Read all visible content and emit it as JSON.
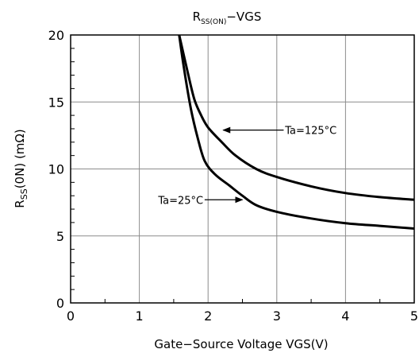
{
  "chart_data": {
    "type": "line",
    "title_main": "R",
    "title_sub": "SS(ON)",
    "title_tail": "−VGS",
    "xlabel": "Gate−Source Voltage VGS(V)",
    "ylabel_main": "R",
    "ylabel_sub": "SS",
    "ylabel_tail": "(0N) (mΩ)",
    "xlim": [
      0,
      5
    ],
    "ylim": [
      0,
      20
    ],
    "xticks": [
      0,
      1,
      2,
      3,
      4,
      5
    ],
    "yticks": [
      0,
      5,
      10,
      15,
      20
    ],
    "grid": true,
    "series": [
      {
        "name": "Ta=125°C",
        "x": [
          1.58,
          1.7,
          1.8,
          1.9,
          2.0,
          2.2,
          2.4,
          2.7,
          3.0,
          3.5,
          4.0,
          4.5,
          5.0
        ],
        "y": [
          20,
          17.3,
          15.2,
          14.0,
          13.1,
          12.0,
          11.0,
          10.0,
          9.4,
          8.7,
          8.2,
          7.9,
          7.7
        ]
      },
      {
        "name": "Ta=25°C",
        "x": [
          1.58,
          1.65,
          1.75,
          1.85,
          1.95,
          2.1,
          2.3,
          2.5,
          2.7,
          3.0,
          3.5,
          4.0,
          4.5,
          5.0
        ],
        "y": [
          20,
          17.5,
          14.5,
          12.3,
          10.6,
          9.6,
          8.8,
          8.0,
          7.3,
          6.8,
          6.3,
          5.95,
          5.75,
          5.55
        ]
      }
    ],
    "annotations": [
      {
        "text": "Ta=125°C",
        "series": 0
      },
      {
        "text": "Ta=25°C",
        "series": 1
      }
    ]
  }
}
